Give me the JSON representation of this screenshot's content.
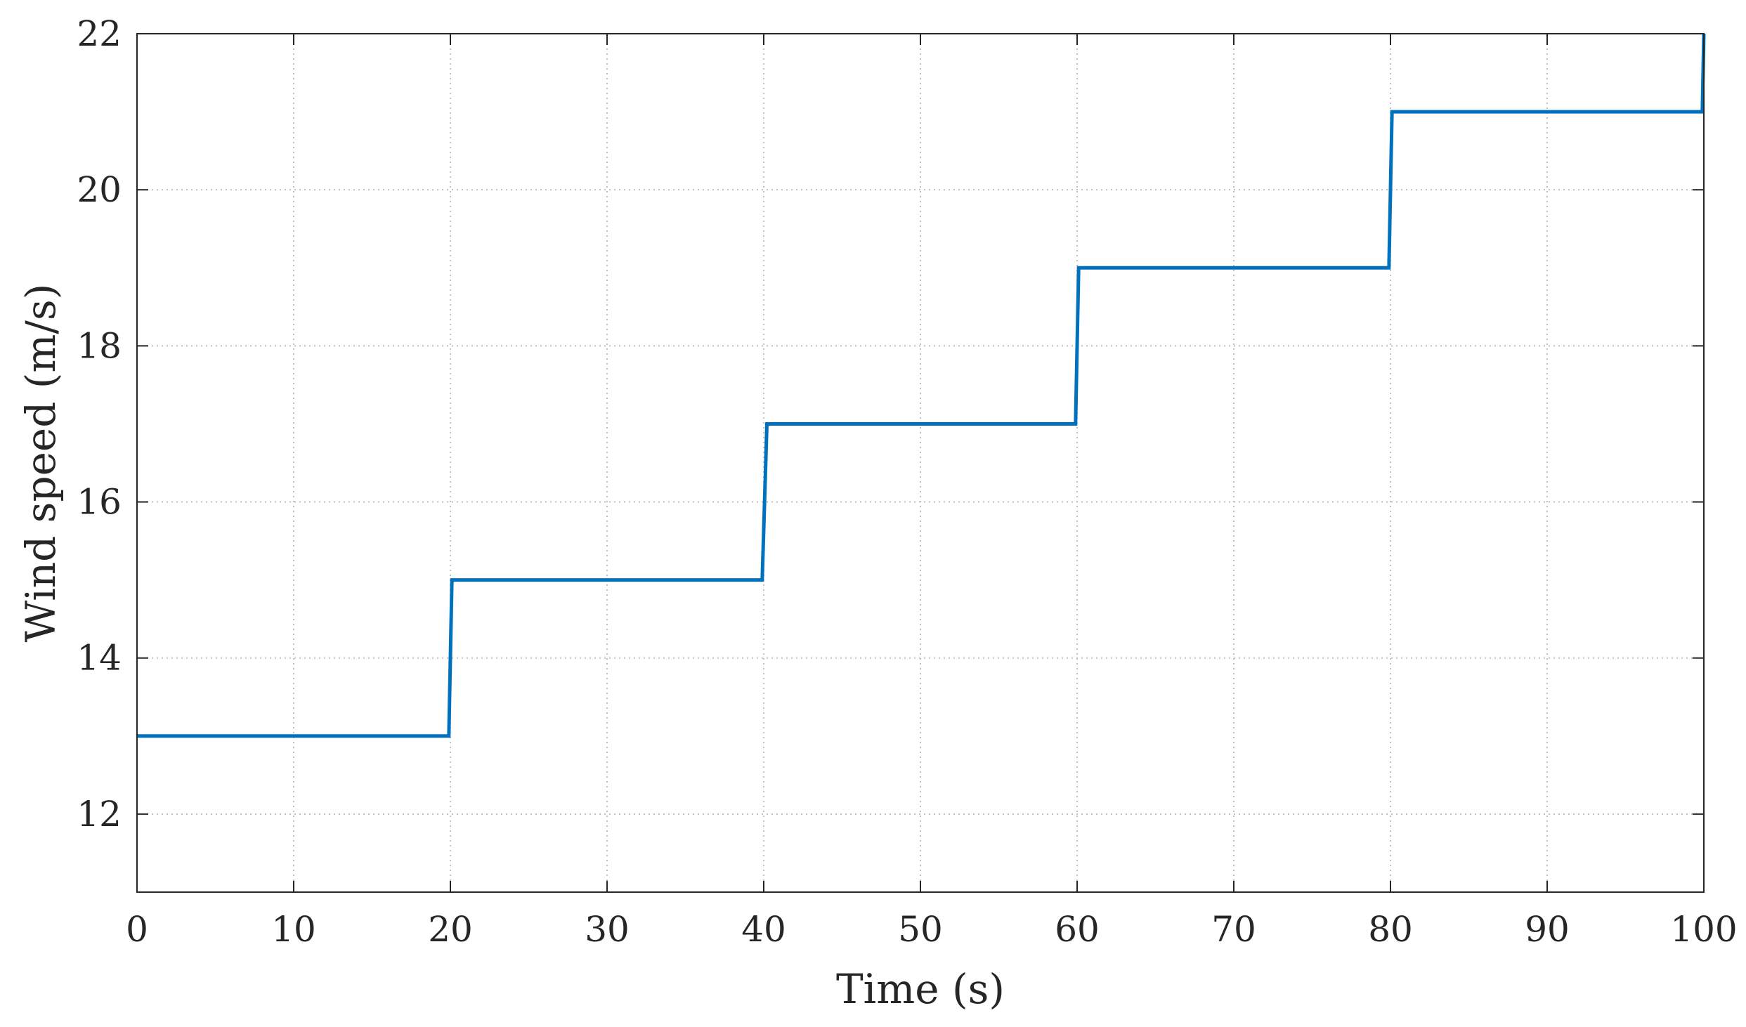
{
  "chart_data": {
    "type": "line",
    "xlabel": "Time (s)",
    "ylabel": "Wind speed (m/s)",
    "xlim": [
      0,
      100
    ],
    "ylim": [
      11,
      22
    ],
    "xticks": [
      0,
      10,
      20,
      30,
      40,
      50,
      60,
      70,
      80,
      90,
      100
    ],
    "yticks": [
      12,
      14,
      16,
      18,
      20,
      22
    ],
    "grid": true,
    "series": [
      {
        "color": "#0072BD",
        "x": [
          0,
          19.9,
          20.1,
          39.9,
          40.2,
          59.9,
          60.1,
          79.9,
          80.1,
          99.9,
          100
        ],
        "y": [
          13,
          13,
          15,
          15,
          17,
          17,
          19,
          19,
          21,
          21,
          22
        ]
      }
    ]
  },
  "colors": {
    "axis": "#262626",
    "grid": "#bfbfbf",
    "background": "#ffffff"
  }
}
